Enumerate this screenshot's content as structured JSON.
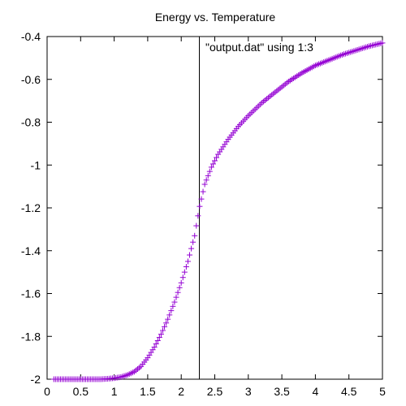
{
  "chart_data": {
    "type": "scatter",
    "title": "Energy vs. Temperature",
    "xlabel": "",
    "ylabel": "",
    "xlim": [
      0,
      5
    ],
    "ylim": [
      -2,
      -0.4
    ],
    "xticks": [
      "0",
      "0.5",
      "1",
      "1.5",
      "2",
      "2.5",
      "3",
      "3.5",
      "4",
      "4.5",
      "5"
    ],
    "yticks": [
      "-2",
      "-1.8",
      "-1.6",
      "-1.4",
      "-1.2",
      "-1",
      "-0.8",
      "-0.6",
      "-0.4"
    ],
    "grid": false,
    "legend_position": "top-right",
    "marker": "plus",
    "marker_color": "#9400d3",
    "reference_line_x": 2.27,
    "series": [
      {
        "name": "\"output.dat\" using 1:3",
        "x": [
          0.1,
          0.2,
          0.3,
          0.4,
          0.5,
          0.6,
          0.7,
          0.8,
          0.9,
          1.0,
          1.1,
          1.2,
          1.3,
          1.4,
          1.5,
          1.6,
          1.7,
          1.8,
          1.9,
          2.0,
          2.1,
          2.2,
          2.27,
          2.35,
          2.45,
          2.55,
          2.7,
          2.85,
          3.0,
          3.2,
          3.4,
          3.6,
          3.8,
          4.0,
          4.2,
          4.4,
          4.6,
          4.8,
          5.0
        ],
        "y": [
          -2.0,
          -2.0,
          -2.0,
          -2.0,
          -2.0,
          -2.0,
          -2.0,
          -2.0,
          -1.998,
          -1.995,
          -1.99,
          -1.98,
          -1.965,
          -1.94,
          -1.9,
          -1.85,
          -1.79,
          -1.72,
          -1.64,
          -1.55,
          -1.45,
          -1.33,
          -1.2,
          -1.09,
          -1.01,
          -0.95,
          -0.88,
          -0.82,
          -0.77,
          -0.71,
          -0.66,
          -0.61,
          -0.57,
          -0.535,
          -0.51,
          -0.485,
          -0.465,
          -0.445,
          -0.43
        ]
      }
    ]
  }
}
